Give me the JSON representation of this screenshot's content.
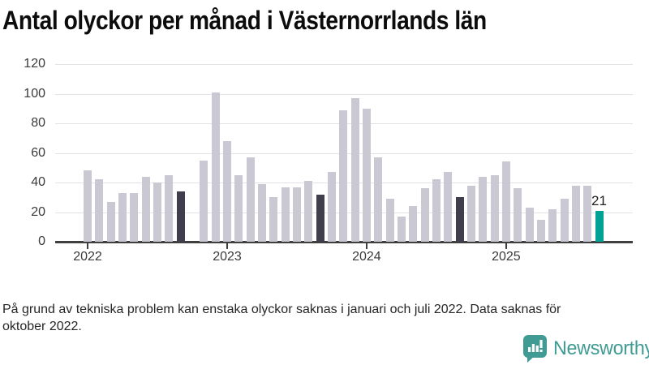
{
  "title": "Antal olyckor per månad i Västernorrlands län",
  "footer": {
    "lines": [
      "På grund av tekniska problem kan enstaka olyckor saknas i januari och juli 2022. Data saknas för",
      "oktober 2022."
    ]
  },
  "logo": {
    "text": "Newsworthy",
    "icon": "speech-bubble-bar-chart"
  },
  "chart_data": {
    "type": "bar",
    "title": "Antal olyckor per månad i Västernorrlands län",
    "xlabel": "",
    "ylabel": "",
    "ylim": [
      0,
      120
    ],
    "yticks": [
      0,
      20,
      40,
      60,
      80,
      100,
      120
    ],
    "grid": true,
    "legend": "none",
    "months": [
      "2022-01",
      "2022-02",
      "2022-03",
      "2022-04",
      "2022-05",
      "2022-06",
      "2022-07",
      "2022-08",
      "2022-09",
      "2022-10",
      "2022-11",
      "2022-12",
      "2023-01",
      "2023-02",
      "2023-03",
      "2023-04",
      "2023-05",
      "2023-06",
      "2023-07",
      "2023-08",
      "2023-09",
      "2023-10",
      "2023-11",
      "2023-12",
      "2024-01",
      "2024-02",
      "2024-03",
      "2024-04",
      "2024-05",
      "2024-06",
      "2024-07",
      "2024-08",
      "2024-09",
      "2024-10",
      "2024-11",
      "2024-12",
      "2025-01",
      "2025-02",
      "2025-03",
      "2025-04",
      "2025-05",
      "2025-06",
      "2025-07",
      "2025-08",
      "2025-09"
    ],
    "values": [
      48,
      42,
      27,
      33,
      33,
      44,
      40,
      45,
      34,
      null,
      55,
      101,
      68,
      45,
      57,
      39,
      30,
      37,
      37,
      41,
      32,
      47,
      89,
      97,
      90,
      57,
      29,
      17,
      24,
      36,
      42,
      47,
      30,
      38,
      44,
      45,
      54,
      36,
      23,
      15,
      22,
      29,
      38,
      38,
      21
    ],
    "missing_months": [
      "2022-10"
    ],
    "bar_roles": {
      "2022-09": "dark",
      "2023-09": "dark",
      "2024-09": "dark",
      "2025-09": "current"
    },
    "year_ticks": [
      {
        "label": "2022",
        "month_index": 0
      },
      {
        "label": "2023",
        "month_index": 12
      },
      {
        "label": "2024",
        "month_index": 24
      },
      {
        "label": "2025",
        "month_index": 36
      }
    ],
    "annotation": {
      "month": "2025-09",
      "month_index": 44,
      "text": "21"
    },
    "colors": {
      "bar": "#cac8d2",
      "bar_dark": "#403e4d",
      "bar_current": "#00a296",
      "axis": "#3f3f3f",
      "gridline": "#e2e2e6",
      "tick_label": "#3a3a3a",
      "logo_teal": "#3f9b93"
    }
  }
}
